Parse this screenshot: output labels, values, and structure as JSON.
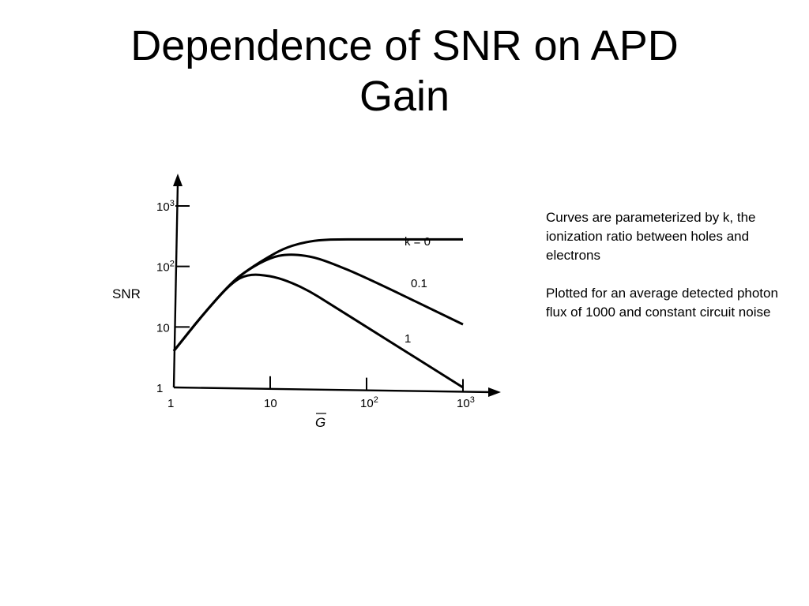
{
  "slide": {
    "title_line1": "Dependence of SNR on APD",
    "title_line2": "Gain"
  },
  "notes": {
    "paragraph1": "Curves are parameterized by k, the ionization ratio between holes and electrons",
    "paragraph2": "Plotted for an average detected photon flux of 1000 and constant circuit noise"
  },
  "chart_data": {
    "type": "line",
    "xlabel": "G",
    "ylabel": "SNR",
    "x_scale": "log",
    "y_scale": "log",
    "xlim": [
      1,
      1000
    ],
    "ylim": [
      1,
      1000
    ],
    "x_ticks": [
      {
        "value": 1,
        "base": "1",
        "exp": ""
      },
      {
        "value": 10,
        "base": "10",
        "exp": ""
      },
      {
        "value": 100,
        "base": "10",
        "exp": "2"
      },
      {
        "value": 1000,
        "base": "10",
        "exp": "3"
      }
    ],
    "y_ticks": [
      {
        "value": 1,
        "base": "1",
        "exp": ""
      },
      {
        "value": 10,
        "base": "10",
        "exp": ""
      },
      {
        "value": 100,
        "base": "10",
        "exp": "2"
      },
      {
        "value": 1000,
        "base": "10",
        "exp": "3"
      }
    ],
    "series": [
      {
        "name": "k = 0",
        "x": [
          1,
          2,
          4,
          6,
          10,
          15,
          25,
          40,
          100,
          1000
        ],
        "y": [
          4,
          16,
          55,
          90,
          150,
          210,
          260,
          280,
          280,
          280
        ]
      },
      {
        "name": "0.1",
        "x": [
          1,
          2,
          4,
          6,
          10,
          15,
          25,
          40,
          100,
          1000
        ],
        "y": [
          4,
          16,
          55,
          90,
          140,
          160,
          150,
          120,
          65,
          11
        ]
      },
      {
        "name": "1",
        "x": [
          1,
          2,
          4,
          6,
          10,
          15,
          25,
          40,
          100,
          1000
        ],
        "y": [
          4,
          16,
          55,
          75,
          70,
          58,
          40,
          25,
          10,
          1
        ]
      }
    ],
    "grid": false,
    "legend": "inline labels next to curves"
  }
}
